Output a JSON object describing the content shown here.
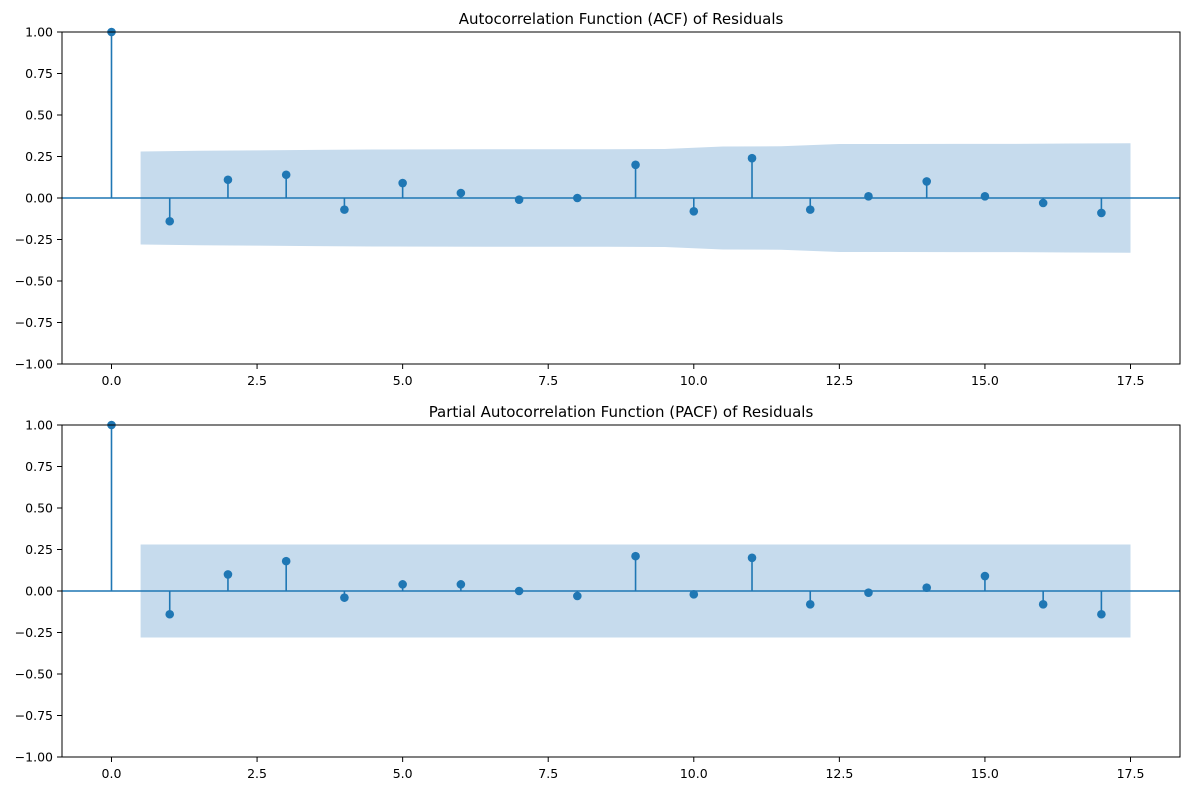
{
  "chart_data": [
    {
      "type": "stem",
      "title": "Autocorrelation Function (ACF) of Residuals",
      "xlabel": "",
      "ylabel": "",
      "xlim": [
        -0.85,
        18.35
      ],
      "ylim": [
        -1.0,
        1.0
      ],
      "x_ticks": [
        0.0,
        2.5,
        5.0,
        7.5,
        10.0,
        12.5,
        15.0,
        17.5
      ],
      "x_tick_labels": [
        "0.0",
        "2.5",
        "5.0",
        "7.5",
        "10.0",
        "12.5",
        "15.0",
        "17.5"
      ],
      "y_ticks": [
        -1.0,
        -0.75,
        -0.5,
        -0.25,
        0.0,
        0.25,
        0.5,
        0.75,
        1.0
      ],
      "y_tick_labels": [
        "−1.00",
        "−0.75",
        "−0.50",
        "−0.25",
        "0.00",
        "0.25",
        "0.50",
        "0.75",
        "1.00"
      ],
      "grid": false,
      "lags": [
        0,
        1,
        2,
        3,
        4,
        5,
        6,
        7,
        8,
        9,
        10,
        11,
        12,
        13,
        14,
        15,
        16,
        17
      ],
      "values": [
        1.0,
        -0.14,
        0.11,
        0.14,
        -0.07,
        0.09,
        0.03,
        -0.01,
        0.0,
        0.2,
        -0.08,
        0.24,
        -0.07,
        0.01,
        0.1,
        0.01,
        -0.03,
        -0.09
      ],
      "confidence_band": {
        "x": [
          0.5,
          1.5,
          2.5,
          3.5,
          4.5,
          5.5,
          6.5,
          7.5,
          8.5,
          9.5,
          10.5,
          11.5,
          12.5,
          13.5,
          14.5,
          15.5,
          16.5,
          17.5
        ],
        "upper": [
          0.28,
          0.285,
          0.287,
          0.29,
          0.292,
          0.293,
          0.294,
          0.294,
          0.294,
          0.295,
          0.31,
          0.312,
          0.325,
          0.325,
          0.326,
          0.326,
          0.328,
          0.33
        ]
      },
      "colors": {
        "stem": "#1f77b4",
        "band": "#c6dbed"
      }
    },
    {
      "type": "stem",
      "title": "Partial Autocorrelation Function (PACF) of Residuals",
      "xlabel": "",
      "ylabel": "",
      "xlim": [
        -0.85,
        18.35
      ],
      "ylim": [
        -1.0,
        1.0
      ],
      "x_ticks": [
        0.0,
        2.5,
        5.0,
        7.5,
        10.0,
        12.5,
        15.0,
        17.5
      ],
      "x_tick_labels": [
        "0.0",
        "2.5",
        "5.0",
        "7.5",
        "10.0",
        "12.5",
        "15.0",
        "17.5"
      ],
      "y_ticks": [
        -1.0,
        -0.75,
        -0.5,
        -0.25,
        0.0,
        0.25,
        0.5,
        0.75,
        1.0
      ],
      "y_tick_labels": [
        "−1.00",
        "−0.75",
        "−0.50",
        "−0.25",
        "0.00",
        "0.25",
        "0.50",
        "0.75",
        "1.00"
      ],
      "grid": false,
      "lags": [
        0,
        1,
        2,
        3,
        4,
        5,
        6,
        7,
        8,
        9,
        10,
        11,
        12,
        13,
        14,
        15,
        16,
        17
      ],
      "values": [
        1.0,
        -0.14,
        0.1,
        0.18,
        -0.04,
        0.04,
        0.04,
        0.0,
        -0.03,
        0.21,
        -0.02,
        0.2,
        -0.08,
        -0.01,
        0.02,
        0.09,
        -0.08,
        -0.14
      ],
      "confidence_band": {
        "x": [
          0.5,
          17.5
        ],
        "upper": [
          0.28,
          0.28
        ]
      },
      "colors": {
        "stem": "#1f77b4",
        "band": "#c6dbed"
      }
    }
  ]
}
